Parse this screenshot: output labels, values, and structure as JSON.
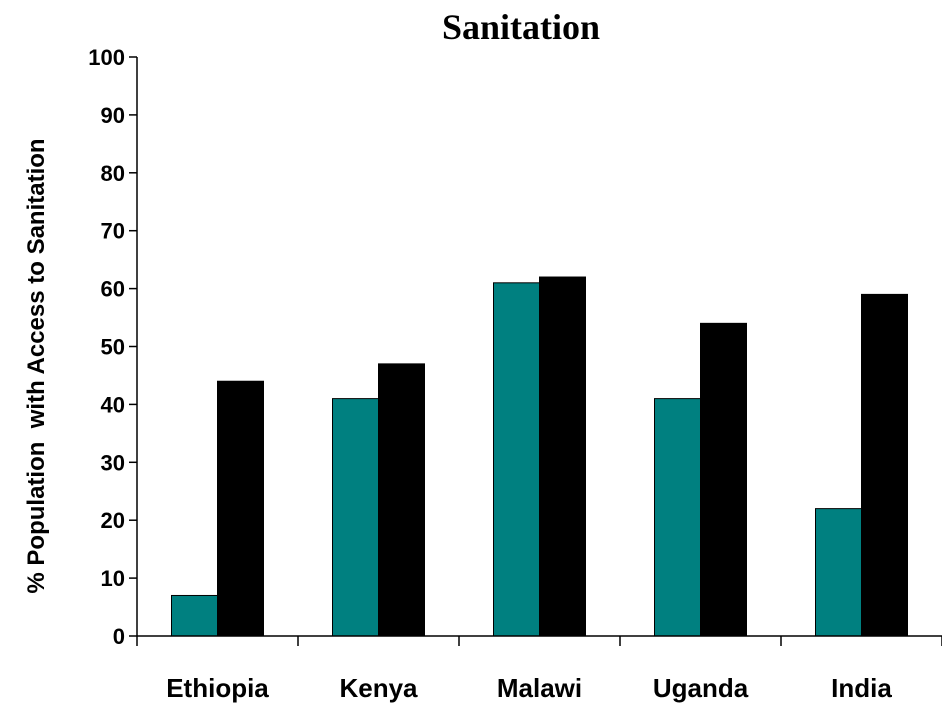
{
  "chart_data": {
    "type": "bar",
    "title": "Sanitation",
    "xlabel": "",
    "ylabel": "% Population  with Access to Sanitation",
    "ylim": [
      0,
      100
    ],
    "yticks": [
      0,
      10,
      20,
      30,
      40,
      50,
      60,
      70,
      80,
      90,
      100
    ],
    "grid": false,
    "legend": "none",
    "categories": [
      "Ethiopia",
      "Kenya",
      "Malawi",
      "Uganda",
      "India"
    ],
    "series": [
      {
        "color": "#008080",
        "values": [
          7,
          41,
          61,
          41,
          22
        ]
      },
      {
        "color": "#000000",
        "values": [
          44,
          47,
          62,
          54,
          59
        ]
      }
    ]
  }
}
